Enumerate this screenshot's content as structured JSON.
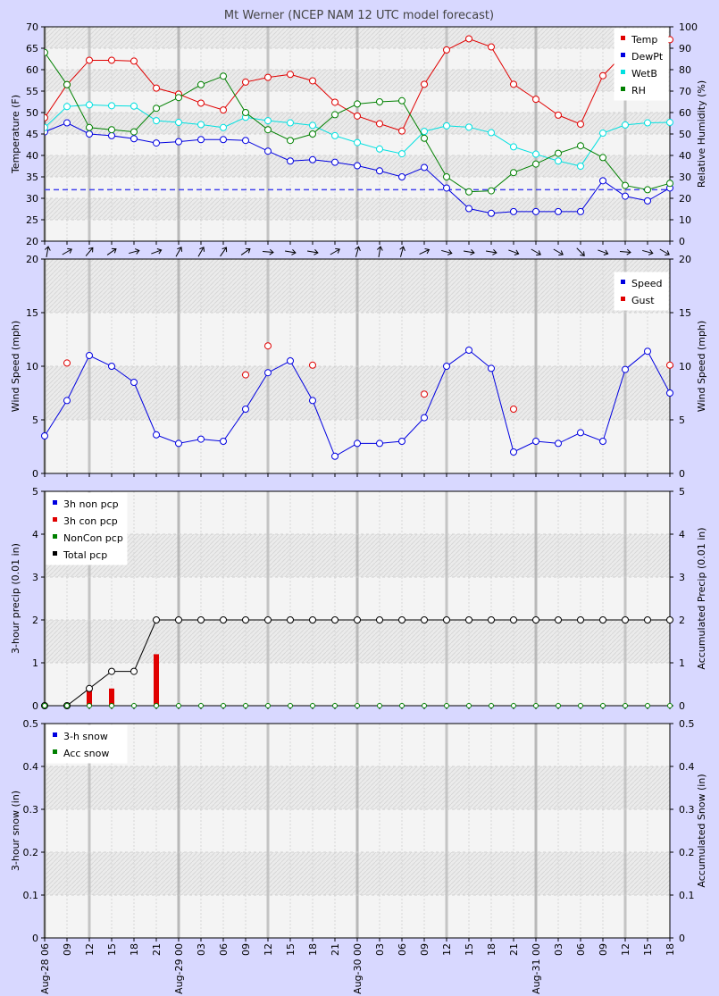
{
  "title": "Mt Werner (NCEP NAM 12 UTC model forecast)",
  "x_ticks": [
    "06",
    "09",
    "12",
    "15",
    "18",
    "21",
    "00",
    "03",
    "06",
    "09",
    "12",
    "15",
    "18",
    "21",
    "00",
    "03",
    "06",
    "09",
    "12",
    "15",
    "18",
    "21",
    "00",
    "03",
    "06",
    "09",
    "12",
    "15",
    "18"
  ],
  "date_labels": [
    {
      "index": 0,
      "text": "Aug-28 06"
    },
    {
      "index": 6,
      "text": "Aug-29 00"
    },
    {
      "index": 14,
      "text": "Aug-30 00"
    },
    {
      "index": 22,
      "text": "Aug-31 00"
    }
  ],
  "chart_data": [
    {
      "type": "line",
      "ylabel": "Temperature (F)",
      "y2label": "Relative Humidity (%)",
      "ylim": [
        20,
        70
      ],
      "y2lim": [
        0,
        100
      ],
      "yticks": [
        20,
        25,
        30,
        35,
        40,
        45,
        50,
        55,
        60,
        65,
        70
      ],
      "y2ticks": [
        0,
        10,
        20,
        30,
        40,
        50,
        60,
        70,
        80,
        90,
        100
      ],
      "reference_line": 32,
      "legend_position": "top-right",
      "series": [
        {
          "name": "Temp",
          "color": "#e00000",
          "axis": "left",
          "values": [
            48.8,
            56.5,
            62.2,
            62.2,
            62.0,
            55.7,
            54.3,
            52.2,
            50.6,
            57.1,
            58.2,
            58.9,
            57.4,
            52.4,
            49.2,
            47.4,
            45.7,
            56.6,
            64.6,
            67.2,
            65.3,
            56.6,
            53.1,
            49.4,
            47.3,
            58.6,
            64.0,
            66.0,
            67.0
          ]
        },
        {
          "name": "DewPt",
          "color": "#0000e0",
          "axis": "left",
          "values": [
            45.5,
            47.6,
            45.0,
            44.6,
            43.9,
            42.9,
            43.2,
            43.7,
            43.7,
            43.5,
            41.0,
            38.7,
            39.0,
            38.4,
            37.6,
            36.4,
            35.0,
            37.2,
            32.4,
            27.6,
            26.5,
            26.9,
            26.9,
            26.9,
            26.9,
            34.1,
            30.5,
            29.4,
            32.4
          ]
        },
        {
          "name": "WetB",
          "color": "#00e0e0",
          "axis": "left",
          "values": [
            46.5,
            51.4,
            51.8,
            51.6,
            51.5,
            48.1,
            47.7,
            47.2,
            46.5,
            48.9,
            48.1,
            47.6,
            47.0,
            44.6,
            43.0,
            41.5,
            40.4,
            45.6,
            46.9,
            46.6,
            45.3,
            42.0,
            40.3,
            38.7,
            37.5,
            45.2,
            47.1,
            47.6,
            47.7
          ]
        },
        {
          "name": "RH",
          "color": "#008000",
          "axis": "right",
          "values": [
            88,
            73,
            53,
            52,
            51,
            62,
            67,
            73,
            77,
            60,
            52,
            47,
            50,
            59,
            64,
            65,
            65.5,
            48,
            30,
            23,
            23.5,
            32,
            36,
            41,
            44.5,
            39,
            26,
            24,
            27
          ]
        }
      ]
    },
    {
      "type": "line",
      "ylabel": "Wind Speed (mph)",
      "y2label": "Wind Speed (mph)",
      "ylim": [
        0,
        20
      ],
      "yticks": [
        0,
        5,
        10,
        15,
        20
      ],
      "legend_position": "top-right",
      "wind_direction_deg": [
        10,
        60,
        40,
        55,
        75,
        70,
        30,
        30,
        35,
        55,
        95,
        100,
        100,
        60,
        15,
        10,
        15,
        65,
        105,
        100,
        100,
        110,
        120,
        120,
        135,
        110,
        95,
        105,
        120
      ],
      "series": [
        {
          "name": "Speed",
          "color": "#0000e0",
          "values": [
            3.5,
            6.8,
            11.0,
            10.0,
            8.5,
            3.6,
            2.8,
            3.2,
            3.0,
            6.0,
            9.4,
            10.5,
            6.8,
            1.6,
            2.8,
            2.8,
            3.0,
            5.2,
            10.0,
            11.5,
            9.8,
            2.0,
            3.0,
            2.8,
            3.8,
            3.0,
            9.7,
            11.4,
            7.5
          ]
        },
        {
          "name": "Gust",
          "color": "#e00000",
          "values": [
            null,
            10.3,
            null,
            null,
            null,
            null,
            null,
            null,
            null,
            9.2,
            11.9,
            null,
            10.1,
            null,
            null,
            null,
            null,
            7.4,
            null,
            null,
            null,
            6.0,
            null,
            null,
            null,
            null,
            null,
            null,
            10.1
          ]
        }
      ]
    },
    {
      "type": "bar",
      "ylabel": "3-hour precip (0.01 in)",
      "y2label": "Accumulated Precip (0.01 in)",
      "ylim": [
        0,
        5
      ],
      "yticks": [
        0,
        1,
        2,
        3,
        4,
        5
      ],
      "legend_position": "top-left",
      "series": [
        {
          "name": "3h non pcp",
          "color": "#0000e0",
          "values": [
            0,
            0,
            0,
            0,
            0,
            0,
            0,
            0,
            0,
            0,
            0,
            0,
            0,
            0,
            0,
            0,
            0,
            0,
            0,
            0,
            0,
            0,
            0,
            0,
            0,
            0,
            0,
            0,
            0
          ]
        },
        {
          "name": "3h con pcp",
          "color": "#e00000",
          "values": [
            0,
            0,
            0.4,
            0.4,
            0,
            1.2,
            0,
            0,
            0,
            0,
            0,
            0,
            0,
            0,
            0,
            0,
            0,
            0,
            0,
            0,
            0,
            0,
            0,
            0,
            0,
            0,
            0,
            0,
            0
          ]
        },
        {
          "name": "NonCon pcp",
          "color": "#008000",
          "values": [
            0,
            0,
            0,
            0,
            0,
            0,
            0,
            0,
            0,
            0,
            0,
            0,
            0,
            0,
            0,
            0,
            0,
            0,
            0,
            0,
            0,
            0,
            0,
            0,
            0,
            0,
            0,
            0,
            0
          ]
        },
        {
          "name": "Total pcp",
          "color": "#000000",
          "values": [
            0,
            0,
            0.4,
            0.8,
            0.8,
            2,
            2,
            2,
            2,
            2,
            2,
            2,
            2,
            2,
            2,
            2,
            2,
            2,
            2,
            2,
            2,
            2,
            2,
            2,
            2,
            2,
            2,
            2,
            2
          ]
        }
      ]
    },
    {
      "type": "bar",
      "ylabel": "3-hour snow (in)",
      "y2label": "Accumulated Snow (in)",
      "ylim": [
        0,
        0.5
      ],
      "yticks": [
        0,
        0.1,
        0.2,
        0.3,
        0.4,
        0.5
      ],
      "legend_position": "top-left",
      "series": [
        {
          "name": "3-h snow",
          "color": "#0000e0",
          "values": []
        },
        {
          "name": "Acc snow",
          "color": "#008000",
          "values": []
        }
      ]
    }
  ]
}
